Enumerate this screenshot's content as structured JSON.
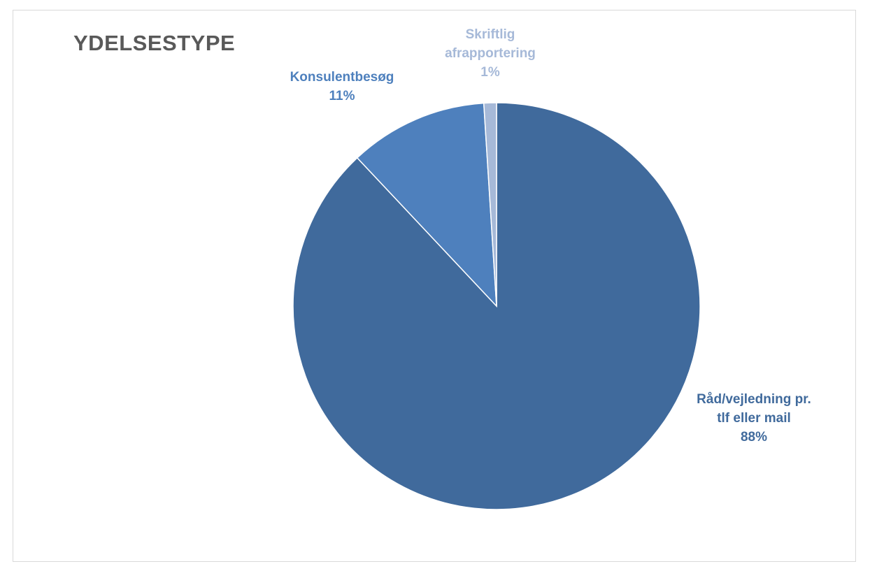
{
  "chart_data": {
    "type": "pie",
    "title": "YDELSESTYPE",
    "slices": [
      {
        "name": "Råd/vejledning pr. tlf eller mail",
        "label_lines": [
          "Råd/vejledning pr.",
          "tlf eller mail"
        ],
        "value": 88,
        "value_label": "88%",
        "color": "#406A9C"
      },
      {
        "name": "Konsulentbesøg",
        "label_lines": [
          "Konsulentbesøg"
        ],
        "value": 11,
        "value_label": "11%",
        "color": "#4E80BD"
      },
      {
        "name": "Skriftlig afrapportering",
        "label_lines": [
          "Skriftlig",
          "afrapportering"
        ],
        "value": 1,
        "value_label": "1%",
        "color": "#A6B9D8"
      }
    ],
    "legend": "none"
  },
  "colors": {
    "title": "#595959",
    "frame_border": "#D9D9D9"
  }
}
